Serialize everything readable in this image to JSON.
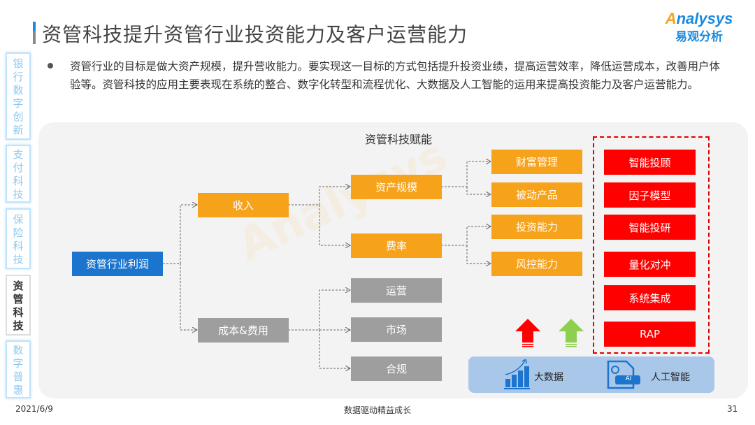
{
  "header": {
    "title": "资管科技提升资管行业投资能力及客户运营能力",
    "logo_en": "nalysys",
    "logo_en_prefix": "A",
    "logo_cn": "易观分析"
  },
  "side_tabs": [
    {
      "label": "银行数字创新",
      "active": false
    },
    {
      "label": "支付科技",
      "active": false
    },
    {
      "label": "保险科技",
      "active": false
    },
    {
      "label": "资管科技",
      "active": true
    },
    {
      "label": "数字普惠",
      "active": false
    }
  ],
  "summary": "资管行业的目标是做大资产规模，提升营收能力。要实现这一目标的方式包括提升投资业绩，提高运营效率，降低运营成本，改善用户体验等。资管科技的应用主要表现在系统的整合、数字化转型和流程优化、大数据及人工智能的运用来提高投资能力及客户运营能力。",
  "diagram": {
    "title": "资管科技赋能",
    "root": "资管行业利润",
    "level1": [
      "收入",
      "成本&费用"
    ],
    "revenue_children": [
      "资产规模",
      "费率"
    ],
    "cost_children": [
      "运营",
      "市场",
      "合规"
    ],
    "level3": [
      "财富管理",
      "被动产品",
      "投资能力",
      "风控能力"
    ],
    "tech": [
      "智能投顾",
      "因子模型",
      "智能投研",
      "量化对冲",
      "系统集成",
      "RAP"
    ],
    "foundation": [
      "大数据",
      "人工智能"
    ],
    "ai_badge": "AI",
    "colors": {
      "root": "#1b74cd",
      "revenue": "#f7a21b",
      "cost": "#9e9e9e",
      "tech": "#ff0000",
      "up_red": "#ff0000",
      "up_green": "#8fcf4f"
    }
  },
  "footer": {
    "date": "2021/6/9",
    "slogan": "数据驱动精益成长",
    "page": "31"
  }
}
